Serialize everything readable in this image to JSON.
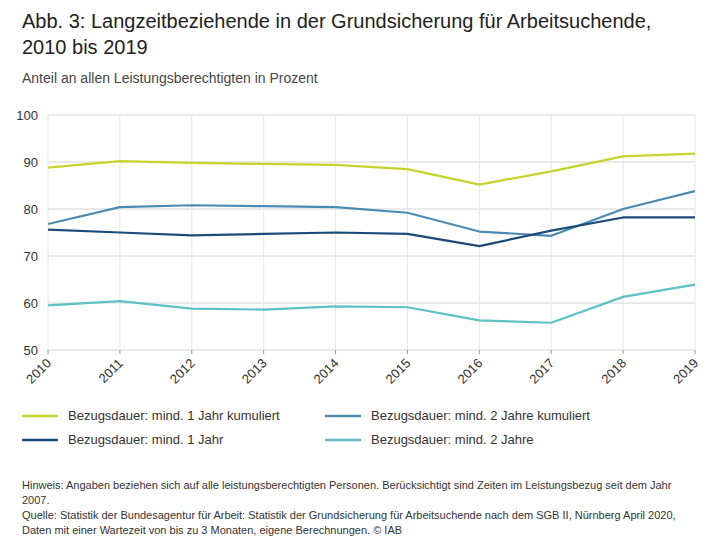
{
  "chart_data": {
    "type": "line",
    "title": "Abb. 3: Langzeitbeziehende in der Grundsicherung für Arbeitsuchende, 2010 bis 2019",
    "subtitle": "Anteil an allen Leistungsberechtigten in Prozent",
    "categories": [
      "2010",
      "2011",
      "2012",
      "2013",
      "2014",
      "2015",
      "2016",
      "2017",
      "2018",
      "2019"
    ],
    "series": [
      {
        "name": "Bezugsdauer: mind. 1 Jahr kumuliert",
        "color": "#c4d42b",
        "values": [
          88.8,
          90.2,
          89.8,
          89.6,
          89.4,
          88.5,
          85.2,
          88.0,
          91.2,
          91.8
        ]
      },
      {
        "name": "Bezugsdauer: mind. 2 Jahre kumuliert",
        "color": "#4b8bb2",
        "values": [
          76.8,
          80.4,
          80.8,
          80.6,
          80.4,
          79.2,
          75.2,
          74.3,
          80.0,
          83.8
        ]
      },
      {
        "name": "Bezugsdauer: mind. 1 Jahr",
        "color": "#1c4a7a",
        "values": [
          75.6,
          75.0,
          74.4,
          74.7,
          75.0,
          74.7,
          72.1,
          75.4,
          78.2,
          78.2
        ]
      },
      {
        "name": "Bezugsdauer: mind. 2 Jahre",
        "color": "#5cc0c5",
        "values": [
          59.5,
          60.4,
          58.8,
          58.6,
          59.3,
          59.1,
          56.3,
          55.8,
          61.3,
          63.9
        ]
      }
    ],
    "ylim": [
      50,
      100
    ],
    "yticks": [
      50,
      60,
      70,
      80,
      90,
      100
    ],
    "grid": true,
    "annotations": [
      "Hinweis: Angaben beziehen sich auf alle leistungsberechtigten Personen. Berücksichtigt sind Zeiten im Leistungsbezug seit dem Jahr 2007.",
      "Quelle: Statistik der Bundesagentur für Arbeit: Statistik der Grundsicherung für Arbeitsuchende nach dem SGB II, Nürnberg April 2020, Daten mit einer Wartezeit von bis zu 3 Monaten, eigene Berechnungen. © IAB"
    ]
  }
}
